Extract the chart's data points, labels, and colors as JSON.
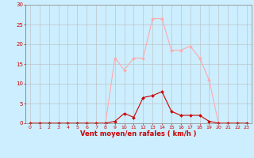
{
  "x_values": [
    0,
    1,
    2,
    3,
    4,
    5,
    6,
    7,
    8,
    9,
    10,
    11,
    12,
    13,
    14,
    15,
    16,
    17,
    18,
    19,
    20,
    21,
    22,
    23
  ],
  "y_rafales": [
    0,
    0,
    0,
    0,
    0,
    0,
    0,
    0,
    0,
    16.5,
    13.5,
    16.5,
    16.5,
    26.5,
    26.5,
    18.5,
    18.5,
    19.5,
    16.5,
    11,
    0,
    0,
    0,
    0
  ],
  "y_moyen": [
    0,
    0,
    0,
    0,
    0,
    0,
    0,
    0,
    0,
    0.5,
    2.5,
    1.5,
    6.5,
    7,
    8,
    3,
    2,
    2,
    2,
    0.5,
    0,
    0,
    0,
    0
  ],
  "line_color_rafales": "#ffaaaa",
  "line_color_moyen": "#cc0000",
  "marker_color_rafales": "#ffaaaa",
  "marker_color_moyen": "#cc0000",
  "bg_color": "#cceeff",
  "grid_color": "#bbbbbb",
  "axis_color": "#cc0000",
  "tick_color": "#cc0000",
  "label_color": "#cc0000",
  "xlabel": "Vent moyen/en rafales ( km/h )",
  "ylim": [
    0,
    30
  ],
  "yticks": [
    0,
    5,
    10,
    15,
    20,
    25,
    30
  ],
  "xlim": [
    -0.5,
    23.5
  ],
  "xticks": [
    0,
    1,
    2,
    3,
    4,
    5,
    6,
    7,
    8,
    9,
    10,
    11,
    12,
    13,
    14,
    15,
    16,
    17,
    18,
    19,
    20,
    21,
    22,
    23
  ]
}
